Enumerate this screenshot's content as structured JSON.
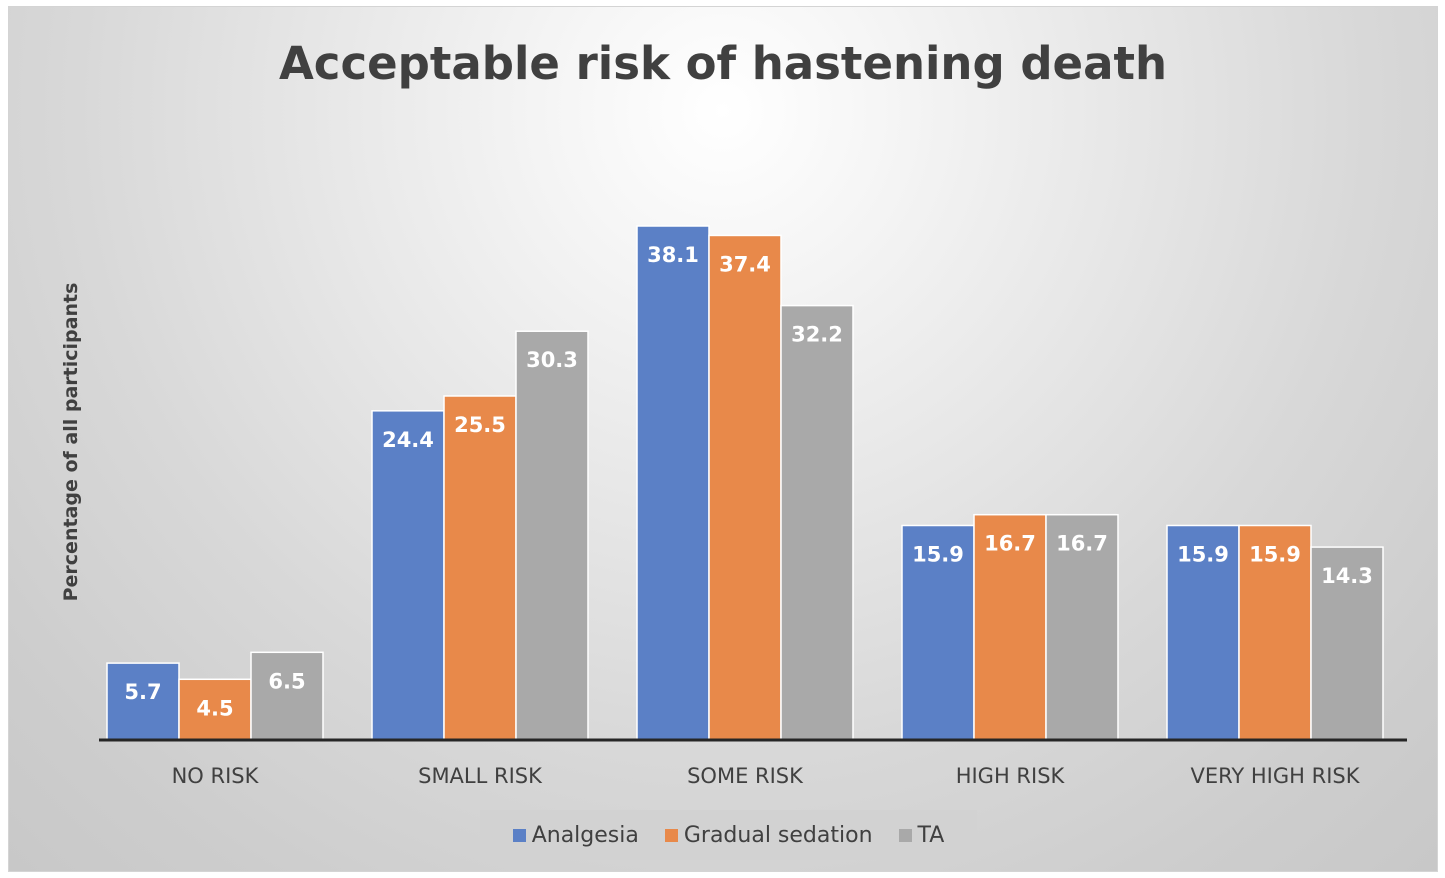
{
  "chart_data": {
    "type": "bar",
    "title": "Acceptable risk of hastening death",
    "ylabel": "Percentage of all participants",
    "xlabel": "",
    "categories": [
      "NO RISK",
      "SMALL RISK",
      "SOME RISK",
      "HIGH RISK",
      "VERY HIGH RISK"
    ],
    "series": [
      {
        "name": "Analgesia",
        "color": "#5b80c6",
        "values": [
          5.7,
          24.4,
          38.1,
          15.9,
          15.9
        ]
      },
      {
        "name": "Gradual sedation",
        "color": "#e8894a",
        "values": [
          4.5,
          25.5,
          37.4,
          16.7,
          15.9
        ]
      },
      {
        "name": "TA",
        "color": "#a9a9a9",
        "values": [
          6.5,
          30.3,
          32.2,
          16.7,
          14.3
        ]
      }
    ],
    "ylim": [
      0,
      38.1
    ],
    "grid": false,
    "legend_position": "bottom",
    "data_labels": true
  }
}
